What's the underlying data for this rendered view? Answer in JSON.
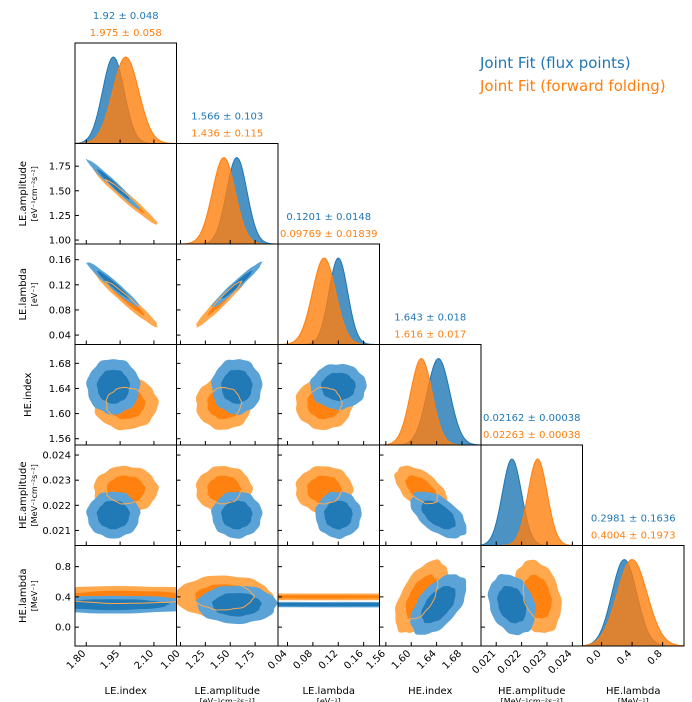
{
  "chart_data": {
    "type": "corner",
    "parameters": [
      {
        "name": "LE.index",
        "unit": "",
        "ticks": [
          1.8,
          1.95,
          2.1
        ],
        "tick_labels": [
          "1.80",
          "1.95",
          "2.10"
        ],
        "range": [
          1.75,
          2.2
        ]
      },
      {
        "name": "LE.amplitude",
        "unit": "[eV⁻¹cm⁻²s⁻²]",
        "ticks": [
          1.0,
          1.25,
          1.5,
          1.75
        ],
        "tick_labels": [
          "1.00",
          "1.25",
          "1.50",
          "1.75"
        ],
        "range": [
          0.96,
          1.98
        ]
      },
      {
        "name": "LE.lambda",
        "unit": "[eV⁻¹]",
        "ticks": [
          0.04,
          0.08,
          0.12,
          0.16
        ],
        "tick_labels": [
          "0.04",
          "0.08",
          "0.12",
          "0.16"
        ],
        "range": [
          0.025,
          0.185
        ]
      },
      {
        "name": "HE.index",
        "unit": "",
        "ticks": [
          1.56,
          1.6,
          1.64,
          1.68
        ],
        "tick_labels": [
          "1.56",
          "1.60",
          "1.64",
          "1.68"
        ],
        "range": [
          1.55,
          1.71
        ]
      },
      {
        "name": "HE.amplitude",
        "unit": "[MeV⁻¹cm⁻²s⁻²]",
        "ticks": [
          0.021,
          0.022,
          0.023,
          0.024
        ],
        "tick_labels": [
          "0.021",
          "0.022",
          "0.023",
          "0.024"
        ],
        "range": [
          0.0204,
          0.0244
        ]
      },
      {
        "name": "HE.lambda",
        "unit": "[MeV⁻¹]",
        "ticks": [
          0.0,
          0.4,
          0.8
        ],
        "tick_labels": [
          "0.0",
          "0.4",
          "0.8"
        ],
        "range": [
          -0.25,
          1.08
        ]
      }
    ],
    "series": [
      {
        "name": "Joint Fit (flux points)",
        "color": "#1f77b4",
        "mean": [
          1.92,
          1.566,
          0.1201,
          1.643,
          0.02162,
          0.2981
        ],
        "sigma": [
          0.048,
          0.103,
          0.0148,
          0.018,
          0.00038,
          0.1636
        ],
        "summary": [
          "1.92 ± 0.048",
          "1.566 ± 0.103",
          "0.1201 ± 0.0148",
          "1.643 ± 0.018",
          "0.02162 ± 0.00038",
          "0.2981 ± 0.1636"
        ]
      },
      {
        "name": "Joint Fit (forward folding)",
        "color": "#ff7f0e",
        "mean": [
          1.975,
          1.436,
          0.09769,
          1.616,
          0.02263,
          0.4004
        ],
        "sigma": [
          0.058,
          0.115,
          0.01839,
          0.017,
          0.00038,
          0.1973
        ],
        "summary": [
          "1.975 ± 0.058",
          "1.436 ± 0.115",
          "0.09769 ± 0.01839",
          "1.616 ± 0.017",
          "0.02263 ± 0.00038",
          "0.4004 ± 0.1973"
        ]
      }
    ],
    "correlations": [
      {
        "pair": [
          "LE.index",
          "LE.amplitude"
        ],
        "rho": -0.98
      },
      {
        "pair": [
          "LE.index",
          "LE.lambda"
        ],
        "rho": -0.97
      },
      {
        "pair": [
          "LE.amplitude",
          "LE.lambda"
        ],
        "rho": 0.97
      },
      {
        "pair": [
          "HE.index",
          "HE.amplitude"
        ],
        "rho": -0.55
      },
      {
        "pair": [
          "HE.index",
          "HE.lambda"
        ],
        "rho": 0.55
      },
      {
        "pair": [
          "HE.amplitude",
          "HE.lambda"
        ],
        "rho": -0.25
      }
    ],
    "legend": {
      "position": "top-right"
    }
  }
}
